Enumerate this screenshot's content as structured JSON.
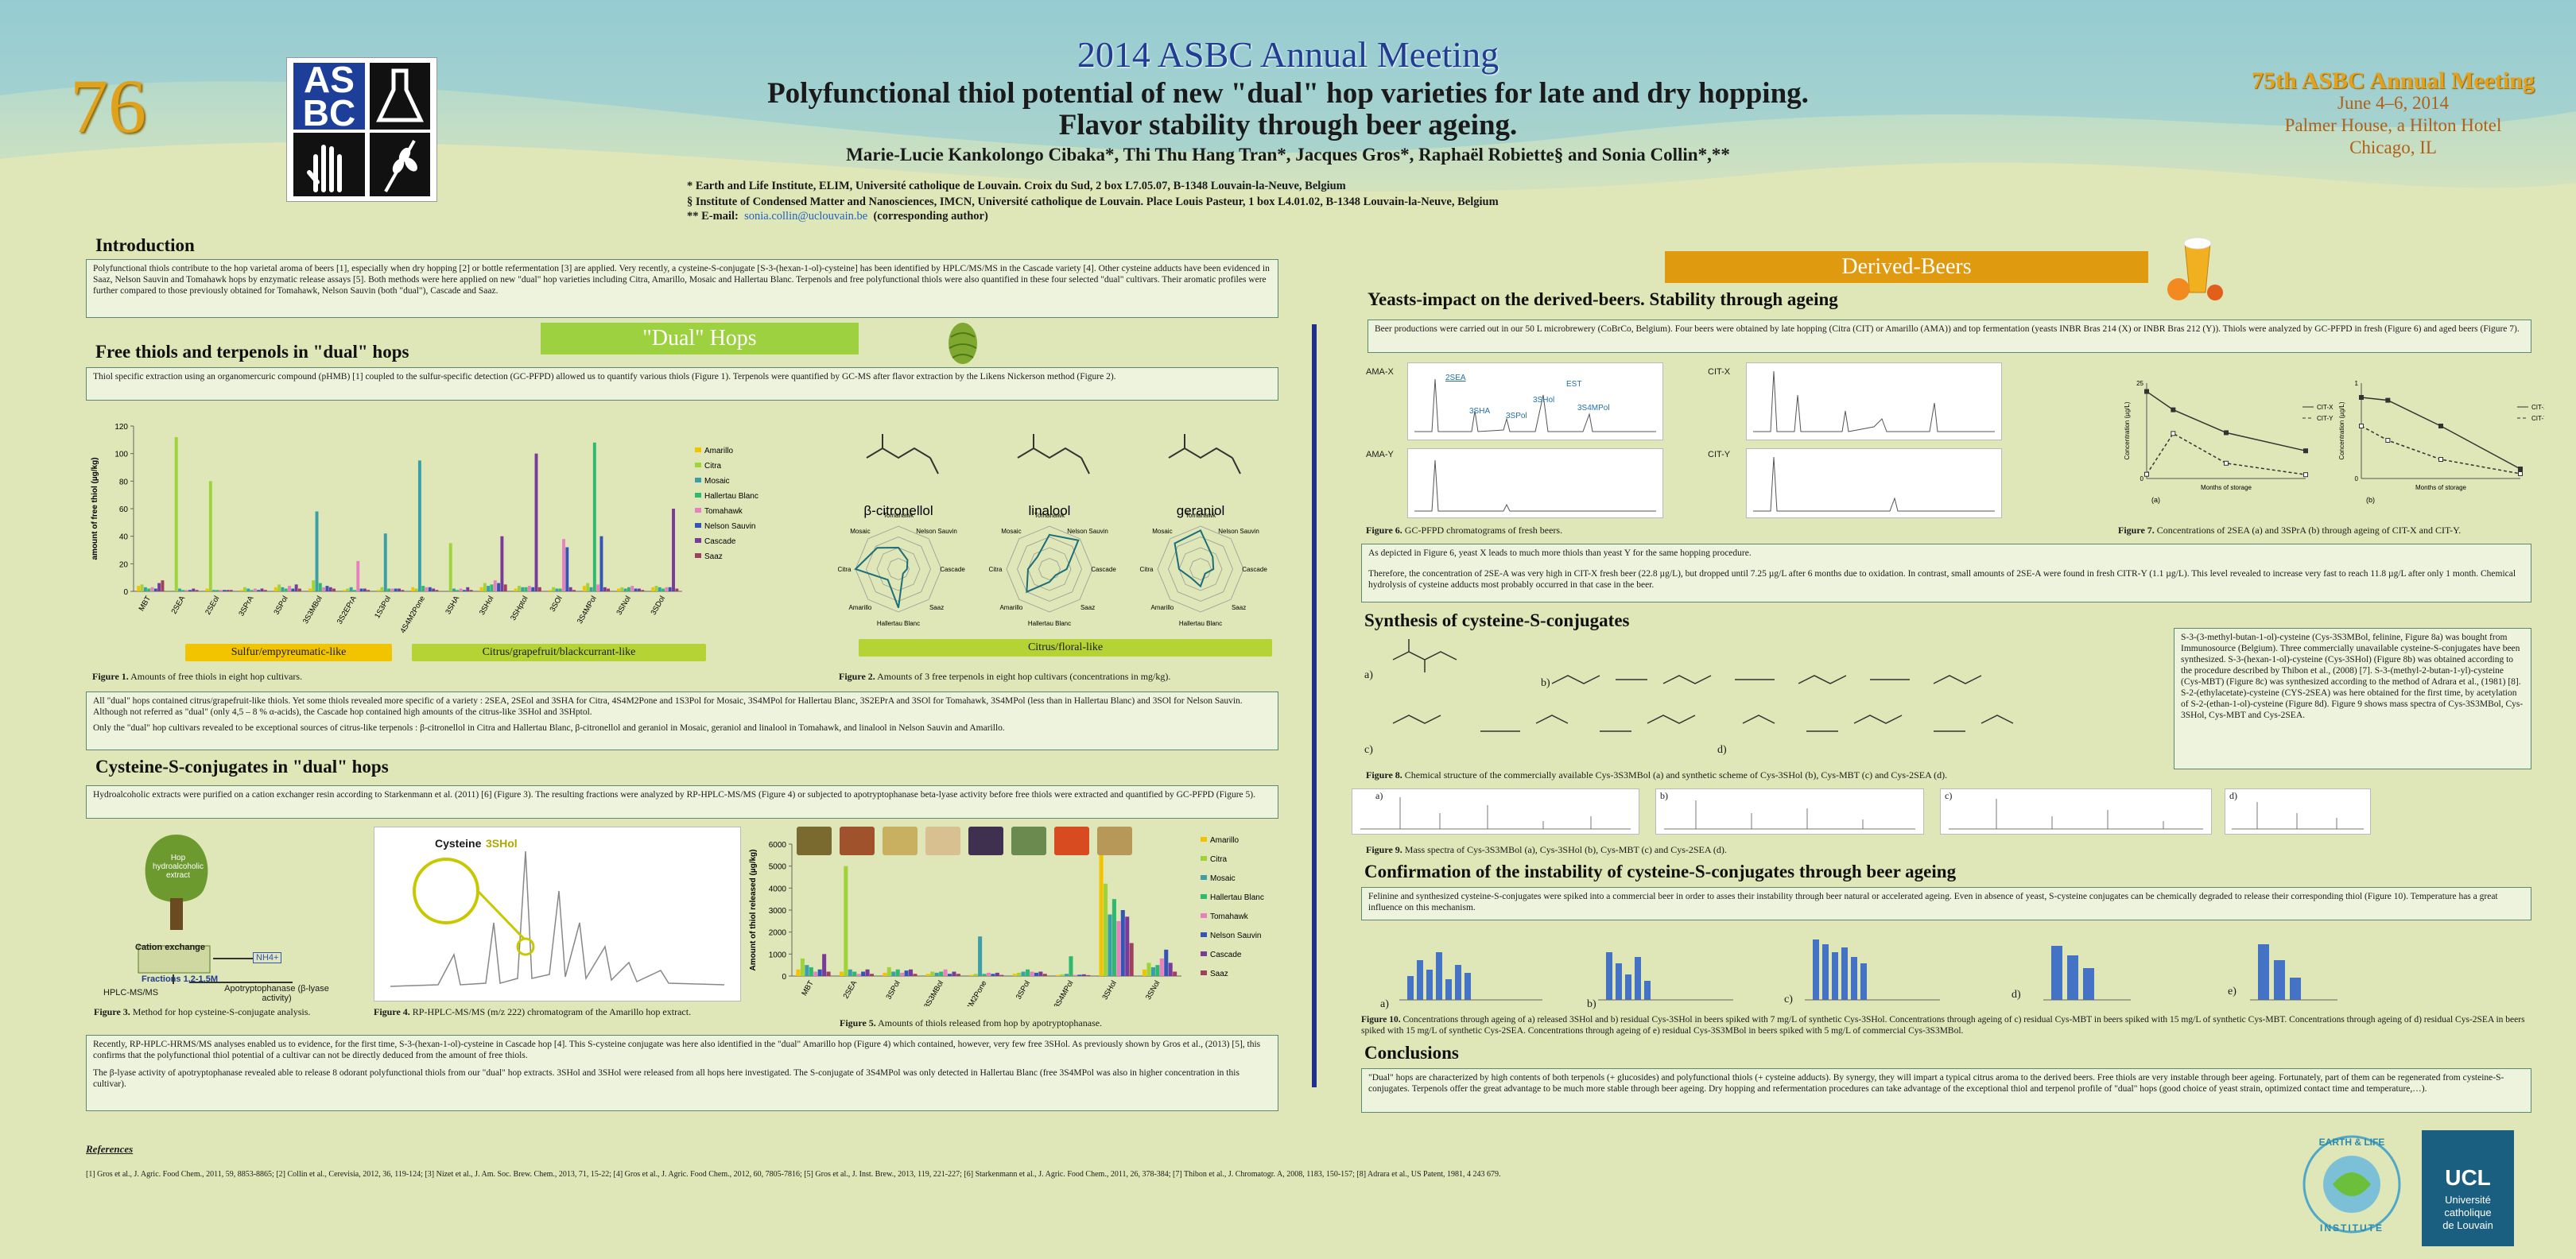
{
  "poster_number": "76",
  "header": {
    "meeting_title": "2014 ASBC Annual Meeting",
    "title_line1": "Polyfunctional thiol potential of new \"dual\" hop varieties for late and dry hopping.",
    "title_line2": "Flavor stability through beer ageing.",
    "authors": "Marie-Lucie Kankolongo Cibaka*, Thi Thu Hang Tran*, Jacques Gros*, Raphaël Robiette§ and Sonia Collin*,**",
    "affil1": "*  Earth and Life Institute, ELIM, Université catholique de Louvain. Croix du Sud, 2 box L7.05.07, B-1348 Louvain-la-Neuve, Belgium",
    "affil2": "§  Institute of Condensed Matter and Nanosciences, IMCN, Université catholique de Louvain. Place Louis Pasteur, 1 box L4.01.02, B-1348 Louvain-la-Neuve, Belgium",
    "email_label": "** E-mail:",
    "email": "sonia.collin@uclouvain.be",
    "email_note": "(corresponding author)"
  },
  "meeting_info": {
    "name": "75th ASBC Annual Meeting",
    "dates": "June 4–6, 2014",
    "venue": "Palmer House, a Hilton Hotel",
    "city": "Chicago, IL"
  },
  "logo_asbc": [
    "AS",
    "BC"
  ],
  "intro": {
    "heading": "Introduction",
    "text": "Polyfunctional thiols contribute to the hop varietal aroma of beers [1], especially when dry hopping [2] or bottle refermentation [3] are applied. Very recently, a cysteine-S-conjugate [S-3-(hexan-1-ol)-cysteine] has been identified by HPLC/MS/MS in the Cascade variety [4]. Other cysteine adducts have been evidenced in Saaz, Nelson Sauvin and Tomahawk hops by enzymatic release assays [5]. Both methods were here applied on new \"dual\" hop varieties including Citra, Amarillo, Mosaic and Hallertau Blanc. Terpenols and free polyfunctional thiols were also quantified in these four selected \"dual\" cultivars. Their aromatic profiles were further compared to those previously obtained for Tomahawk, Nelson Sauvin (both \"dual\"), Cascade and Saaz."
  },
  "dual_hops_banner": "\"Dual\"  Hops",
  "derived_beers_banner": "Derived-Beers",
  "free_thiols": {
    "heading": "Free thiols and terpenols in \"dual\" hops",
    "text": "Thiol specific extraction using an organomercuric compound (pHMB) [1] coupled to the sulfur-specific detection (GC-PFPD) allowed us to quantify various thiols (Figure 1). Terpenols were quantified by GC-MS after flavor extraction by the Likens Nickerson method (Figure 2).",
    "fig1_caption_bold": "Figure 1.",
    "fig1_caption": " Amounts of free thiols in eight hop cultivars.",
    "fig2_caption_bold": "Figure 2.",
    "fig2_caption": " Amounts of 3 free terpenols in eight hop cultivars (concentrations in mg/kg).",
    "tag_sulfur": "Sulfur/empyreumatic-like",
    "tag_citrus": "Citrus/grapefruit/blackcurrant-like",
    "tag_floral": "Citrus/floral-like",
    "text2": "All \"dual\" hops contained citrus/grapefruit-like thiols. Yet some thiols revealed more specific of a variety : 2SEA, 2SEol and 3SHA for Citra, 4S4M2Pone and 1S3Pol for Mosaic, 3S4MPol for Hallertau Blanc, 3S2EPrA and 3SOl for Tomahawk, 3S4MPol (less than in Hallertau Blanc) and 3SOl for Nelson Sauvin. Although not referred as \"dual\" (only 4,5 – 8 % α-acids), the Cascade hop contained high amounts of the citrus-like 3SHol and 3SHptol.",
    "text3": "Only the \"dual\" hop cultivars revealed to be exceptional sources of citrus-like terpenols : β-citronellol in Citra and Hallertau Blanc, β-citronellol and geraniol in Mosaic, geraniol and linalool in Tomahawk, and linalool in Nelson Sauvin and Amarillo."
  },
  "cys_conj": {
    "heading": "Cysteine-S-conjugates in \"dual\" hops",
    "text": "Hydroalcoholic extracts were purified on a cation exchanger resin according to Starkenmann et al. (2011) [6] (Figure 3). The resulting fractions were analyzed by RP-HPLC-MS/MS (Figure 4) or subjected to apotryptophanase beta-lyase activity before free thiols were extracted and quantified by GC-PFPD (Figure 5).",
    "fig3_labels": [
      "Hop hydroalcoholic extract",
      "Cation exchange",
      "NH4+",
      "Fractions 1,2-1,5M",
      "HPLC-MS/MS",
      "Apotryptophanase (β-lyase activity)"
    ],
    "fig3_caption_bold": "Figure 3.",
    "fig3_caption": " Method for hop cysteine-S-conjugate analysis.",
    "fig4_label_cys": "Cysteine",
    "fig4_label_hol": "3SHol",
    "fig4_caption_bold": "Figure 4.",
    "fig4_caption": " RP-HPLC-MS/MS (m/z 222) chromatogram of the Amarillo hop extract.",
    "fig5_caption_bold": "Figure 5.",
    "fig5_caption": " Amounts of thiols released from hop by apotryptophanase.",
    "text2": "Recently, RP-HPLC-HRMS/MS analyses enabled us to evidence, for the first time, S-3-(hexan-1-ol)-cysteine in Cascade hop [4]. This S-cysteine conjugate was here also identified in the \"dual\" Amarillo hop (Figure 4) which contained, however, very few free 3SHol. As previously shown by Gros et al., (2013) [5], this confirms that the polyfunctional thiol potential of a cultivar can not be directly deduced from the amount of free thiols.",
    "text3": "The β-lyase activity of apotryptophanase revealed able to release 8 odorant polyfunctional thiols from our \"dual\" hop extracts. 3SHol and 3SHol were released from all hops here investigated. The S-conjugate of 3S4MPol was only detected in Hallertau Blanc (free 3S4MPol was also in higher concentration in this cultivar)."
  },
  "yeasts": {
    "heading": "Yeasts-impact on the derived-beers. Stability through ageing",
    "text": "Beer productions were carried out in our 50 L microbrewery (CoBrCo, Belgium). Four beers were obtained by late hopping (Citra (CIT) or Amarillo (AMA)) and top fermentation (yeasts INBR Bras 214 (X) or INBR Bras 212 (Y)). Thiols were analyzed by GC-PFPD in fresh (Figure 6) and aged beers (Figure 7).",
    "chrom_labels": [
      "AMA-X",
      "CIT-X",
      "AMA-Y",
      "CIT-Y"
    ],
    "peak_labels": [
      "2SEA",
      "EST",
      "3SHA",
      "3SHol",
      "3S4MPol",
      "3SPol"
    ],
    "fig6_caption_bold": "Figure 6.",
    "fig6_caption": " GC-PFPD chromatograms of fresh beers.",
    "fig7_caption_bold": "Figure 7.",
    "fig7_caption": " Concentrations of 2SEA (a) and 3SPrA (b) through ageing of CIT-X and CIT-Y.",
    "text2": "As depicted in Figure 6, yeast X leads to much more thiols than yeast Y for the same hopping procedure.",
    "text3": "Therefore, the concentration of 2SE-A was very high in CIT-X fresh beer (22.8 µg/L), but dropped until 7.25 µg/L after 6 months due to oxidation. In contrast, small amounts of 2SE-A were found in fresh CITR-Y (1.1 µg/L). This level revealed to increase very fast to reach 11.8 µg/L after only 1 month. Chemical hydrolysis of cysteine adducts most probably occurred in that case in the beer."
  },
  "synthesis": {
    "heading": "Synthesis of cysteine-S-conjugates",
    "text": "S-3-(3-methyl-butan-1-ol)-cysteine (Cys-3S3MBol, felinine, Figure 8a) was bought from Immunosource (Belgium). Three commercially unavailable cysteine-S-conjugates have been synthesized. S-3-(hexan-1-ol)-cysteine (Cys-3SHol) (Figure 8b) was obtained according to the procedure described by Thibon et al., (2008) [7]. S-3-(methyl-2-butan-1-yl)-cysteine (Cys-MBT) (Figure 8c) was synthesized according to the method of Adrara et al., (1981) [8]. S-2-(ethylacetate)-cysteine (CYS-2SEA) was here obtained for the first time, by acetylation of S-2-(ethan-1-ol)-cysteine (Figure 8d). Figure 9 shows mass spectra of Cys-3S3MBol, Cys-3SHol, Cys-MBT and Cys-2SEA.",
    "fig8_caption_bold": "Figure 8.",
    "fig8_caption": " Chemical structure of the commercially available Cys-3S3MBol (a) and synthetic scheme of Cys-3SHol (b), Cys-MBT (c) and Cys-2SEA (d).",
    "fig9_caption_bold": "Figure 9.",
    "fig9_caption": " Mass spectra of Cys-3S3MBol (a), Cys-3SHol (b), Cys-MBT (c) and Cys-2SEA (d).",
    "panel_letters": [
      "a)",
      "b)",
      "c)",
      "d)"
    ]
  },
  "instability": {
    "heading": "Confirmation of the instability of cysteine-S-conjugates through beer ageing",
    "text": "Felinine and synthesized cysteine-S-conjugates were spiked into a commercial beer in order to asses their instability through beer natural or accelerated ageing. Even in absence of yeast, S-cysteine conjugates can be chemically degraded to release their corresponding thiol (Figure 10). Temperature has a great influence on this mechanism.",
    "panel_letters": [
      "a)",
      "b)",
      "c)",
      "d)",
      "e)"
    ],
    "fig10_caption_bold": "Figure 10.",
    "fig10_caption": " Concentrations through ageing of a) released 3SHol and b) residual Cys-3SHol in beers spiked with 7 mg/L of synthetic Cys-3SHol. Concentrations through ageing of c) residual Cys-MBT in beers spiked with 15 mg/L of synthetic Cys-MBT. Concentrations through ageing of d) residual Cys-2SEA in beers spiked with 15 mg/L of synthetic Cys-2SEA. Concentrations through ageing of e) residual Cys-3S3MBol in beers spiked with 5 mg/L of commercial Cys-3S3MBol."
  },
  "conclusions": {
    "heading": "Conclusions",
    "text": "\"Dual\" hops are characterized by high contents of both terpenols (+ glucosides) and polyfunctional thiols (+ cysteine adducts). By synergy, they will impart a typical citrus aroma to the derived beers. Free thiols are very instable through beer ageing. Fortunately, part of them can be regenerated from cysteine-S-conjugates. Terpenols offer the great advantage to be much more stable through beer ageing. Dry hopping and refermentation procedures can take advantage of the exceptional thiol and terpenol profile of \"dual\" hops (good choice of yeast strain, optimized contact time and temperature,…)."
  },
  "references": {
    "heading": "References",
    "text": "[1] Gros et al., J. Agric. Food Chem., 2011, 59, 8853-8865; [2] Collin et al., Cerevisia, 2012, 36, 119-124; [3] Nizet et al., J. Am. Soc. Brew. Chem., 2013, 71, 15-22; [4] Gros et al., J. Agric. Food Chem., 2012, 60, 7805-7816; [5] Gros et al., J. Inst. Brew., 2013, 119, 221-227; [6] Starkenmann et al., J. Agric. Food Chem., 2011, 26, 378-384; [7] Thibon et al., J. Chromatogr. A, 2008, 1183, 150-157; [8] Adrara et al., US Patent, 1981, 4 243 679."
  },
  "terpenols": [
    "β-citronellol",
    "linalool",
    "geraniol"
  ],
  "radar_axes": [
    "Tomahawk",
    "Nelson Sauvin",
    "Cascade",
    "Saaz",
    "Hallertau Blanc",
    "Amarillo",
    "Citra",
    "Mosaic"
  ],
  "ucl_logo": [
    "UCL",
    "Université",
    "catholique",
    "de Louvain"
  ],
  "eli_logo": [
    "EARTH & LIFE",
    "INSTITUTE"
  ],
  "colors": {
    "title_blue": "#1f3d93",
    "orange": "#e3a11c",
    "banner_green": "#9dd13f",
    "banner_orange": "#e09a10",
    "navy": "#243a8c"
  },
  "chart_data": [
    {
      "id": "figure1",
      "type": "bar",
      "ylabel": "amount of free thiol (µg/kg)",
      "ylim": [
        0,
        120
      ],
      "yticks": [
        0,
        20,
        40,
        60,
        80,
        100,
        120
      ],
      "categories": [
        "MBT",
        "2SEA",
        "2SEol",
        "3SPrA",
        "3SPol",
        "3S3MBol",
        "3S2EPrA",
        "1S3Pol",
        "4S4M2Pone",
        "3SHA",
        "3SHol",
        "3SHptol",
        "3SOl",
        "3S4MPol",
        "3SNol",
        "3SDol"
      ],
      "series": [
        {
          "name": "Amarillo",
          "color": "#f2c400",
          "values": [
            4,
            0,
            2,
            1,
            3,
            2,
            1,
            1,
            3,
            0,
            3,
            2,
            1,
            4,
            2,
            3
          ]
        },
        {
          "name": "Citra",
          "color": "#9ed43a",
          "values": [
            5,
            112,
            80,
            3,
            5,
            8,
            2,
            3,
            2,
            35,
            6,
            4,
            3,
            6,
            3,
            4
          ]
        },
        {
          "name": "Mosaic",
          "color": "#3a9fa8",
          "values": [
            3,
            2,
            1,
            2,
            3,
            58,
            3,
            42,
            95,
            2,
            4,
            3,
            2,
            3,
            2,
            3
          ]
        },
        {
          "name": "Hallertau Blanc",
          "color": "#2eb870",
          "values": [
            2,
            1,
            1,
            1,
            2,
            6,
            1,
            2,
            4,
            1,
            5,
            3,
            2,
            108,
            3,
            2
          ]
        },
        {
          "name": "Tomahawk",
          "color": "#e880c0",
          "values": [
            3,
            1,
            1,
            2,
            4,
            3,
            22,
            2,
            3,
            2,
            8,
            4,
            38,
            5,
            4,
            3
          ]
        },
        {
          "name": "Nelson Sauvin",
          "color": "#3355b8",
          "values": [
            2,
            1,
            1,
            1,
            2,
            4,
            2,
            2,
            3,
            1,
            6,
            3,
            32,
            40,
            2,
            3
          ]
        },
        {
          "name": "Cascade",
          "color": "#7a3a9a",
          "values": [
            6,
            2,
            1,
            2,
            5,
            3,
            2,
            2,
            2,
            3,
            40,
            100,
            3,
            3,
            2,
            60
          ]
        },
        {
          "name": "Saaz",
          "color": "#a04060",
          "values": [
            8,
            1,
            1,
            1,
            2,
            2,
            1,
            1,
            1,
            1,
            5,
            3,
            1,
            2,
            1,
            2
          ]
        }
      ]
    },
    {
      "id": "figure5",
      "type": "bar",
      "ylabel": "Amount of thiol released (µg/kg)",
      "ylim": [
        0,
        6000
      ],
      "yticks": [
        0,
        1000,
        2000,
        3000,
        4000,
        5000,
        6000
      ],
      "categories": [
        "MBT",
        "2SEA",
        "3SPol",
        "3S3MBol",
        "4S4M2Pone",
        "3SPol",
        "3S4MPol",
        "3SHol",
        "3SNol"
      ],
      "series": [
        {
          "name": "Amarillo",
          "color": "#f2c400",
          "values": [
            300,
            200,
            150,
            100,
            50,
            100,
            50,
            5800,
            300
          ]
        },
        {
          "name": "Citra",
          "color": "#9ed43a",
          "values": [
            800,
            5000,
            400,
            200,
            100,
            150,
            80,
            4200,
            600
          ]
        },
        {
          "name": "Mosaic",
          "color": "#3a9fa8",
          "values": [
            500,
            300,
            200,
            150,
            1800,
            200,
            100,
            2800,
            400
          ]
        },
        {
          "name": "Hallertau Blanc",
          "color": "#2eb870",
          "values": [
            400,
            200,
            300,
            200,
            100,
            300,
            900,
            3500,
            500
          ]
        },
        {
          "name": "Tomahawk",
          "color": "#e880c0",
          "values": [
            200,
            100,
            150,
            300,
            150,
            200,
            50,
            2500,
            800
          ]
        },
        {
          "name": "Nelson Sauvin",
          "color": "#3355b8",
          "values": [
            300,
            200,
            250,
            100,
            100,
            150,
            60,
            3000,
            1200
          ]
        },
        {
          "name": "Cascade",
          "color": "#7a3a9a",
          "values": [
            1000,
            300,
            300,
            200,
            150,
            200,
            80,
            2700,
            600
          ]
        },
        {
          "name": "Saaz",
          "color": "#a04060",
          "values": [
            200,
            100,
            100,
            100,
            50,
            100,
            40,
            1500,
            200
          ]
        }
      ]
    },
    {
      "id": "figure7a",
      "type": "line",
      "xlabel": "Months of storage",
      "ylabel": "Concentration (µg/L)",
      "ylim": [
        0,
        25
      ],
      "x": [
        0,
        1,
        3,
        6
      ],
      "series": [
        {
          "name": "CIT-X",
          "values": [
            22.8,
            18,
            12,
            7.25
          ]
        },
        {
          "name": "CIT-Y",
          "values": [
            1.1,
            11.8,
            4,
            1
          ]
        }
      ]
    },
    {
      "id": "figure7b",
      "type": "line",
      "xlabel": "Months of storage",
      "ylabel": "Concentration (µg/L)",
      "ylim": [
        0,
        1.0
      ],
      "x": [
        0,
        1,
        3,
        6
      ],
      "series": [
        {
          "name": "CIT-X",
          "values": [
            0.85,
            0.82,
            0.55,
            0.1
          ]
        },
        {
          "name": "CIT-Y",
          "values": [
            0.55,
            0.4,
            0.2,
            0.05
          ]
        }
      ]
    }
  ]
}
